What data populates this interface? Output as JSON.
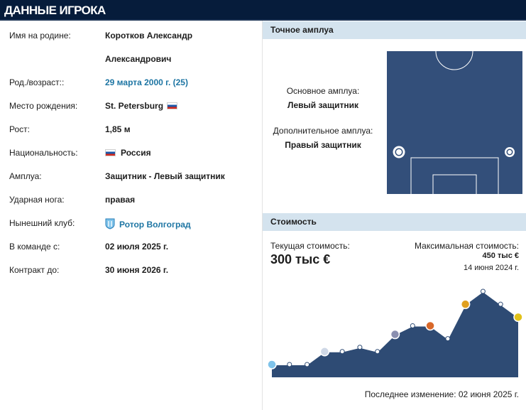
{
  "header": {
    "title": "ДАННЫЕ ИГРОКА"
  },
  "info": {
    "rows": [
      {
        "label": "Имя на родине:",
        "value": "Коротков Александр",
        "value2": "Александрович"
      },
      {
        "label": "Род./возраст::",
        "value": "29 марта 2000 г. (25)"
      },
      {
        "label": "Место рождения:",
        "value": "St. Petersburg"
      },
      {
        "label": "Рост:",
        "value": "1,85 м"
      },
      {
        "label": "Национальность:",
        "value": "Россия"
      },
      {
        "label": "Амплуа:",
        "value": "Защитник - Левый защитник"
      },
      {
        "label": "Ударная нога:",
        "value": "правая"
      },
      {
        "label": "Нынешний клуб:",
        "value": "Ротор Волгоград"
      },
      {
        "label": "В команде с:",
        "value": "02 июля 2025 г."
      },
      {
        "label": "Контракт до:",
        "value": "30 июня 2026 г."
      }
    ]
  },
  "position": {
    "panel_title": "Точное амплуа",
    "main_label": "Основное амплуа:",
    "main_value": "Левый защитник",
    "other_label": "Дополнительное амплуа:",
    "other_value": "Правый защитник"
  },
  "market_value": {
    "panel_title": "Стоимость",
    "current_label": "Текущая стоимость:",
    "current_value": "300 тыс €",
    "max_label": "Максимальная стоимость:",
    "max_value": "450 тыс €",
    "max_date": "14 июня 2024 г.",
    "last_change": "Последнее изменение: 02 июня 2025 г."
  },
  "colors": {
    "header_bg": "#061c3b",
    "panel_head_bg": "#d4e3ee",
    "pitch": "#334f7a",
    "chart_fill": "#2e4b74",
    "link": "#1d75a3"
  },
  "chart_data": {
    "type": "area",
    "title": "",
    "xlabel": "",
    "ylabel": "",
    "series": [
      {
        "values": [
          25,
          25,
          25,
          100,
          100,
          125,
          100,
          200,
          250,
          250,
          175,
          375,
          450,
          375,
          300
        ]
      }
    ],
    "ylim": [
      0,
      450
    ]
  }
}
